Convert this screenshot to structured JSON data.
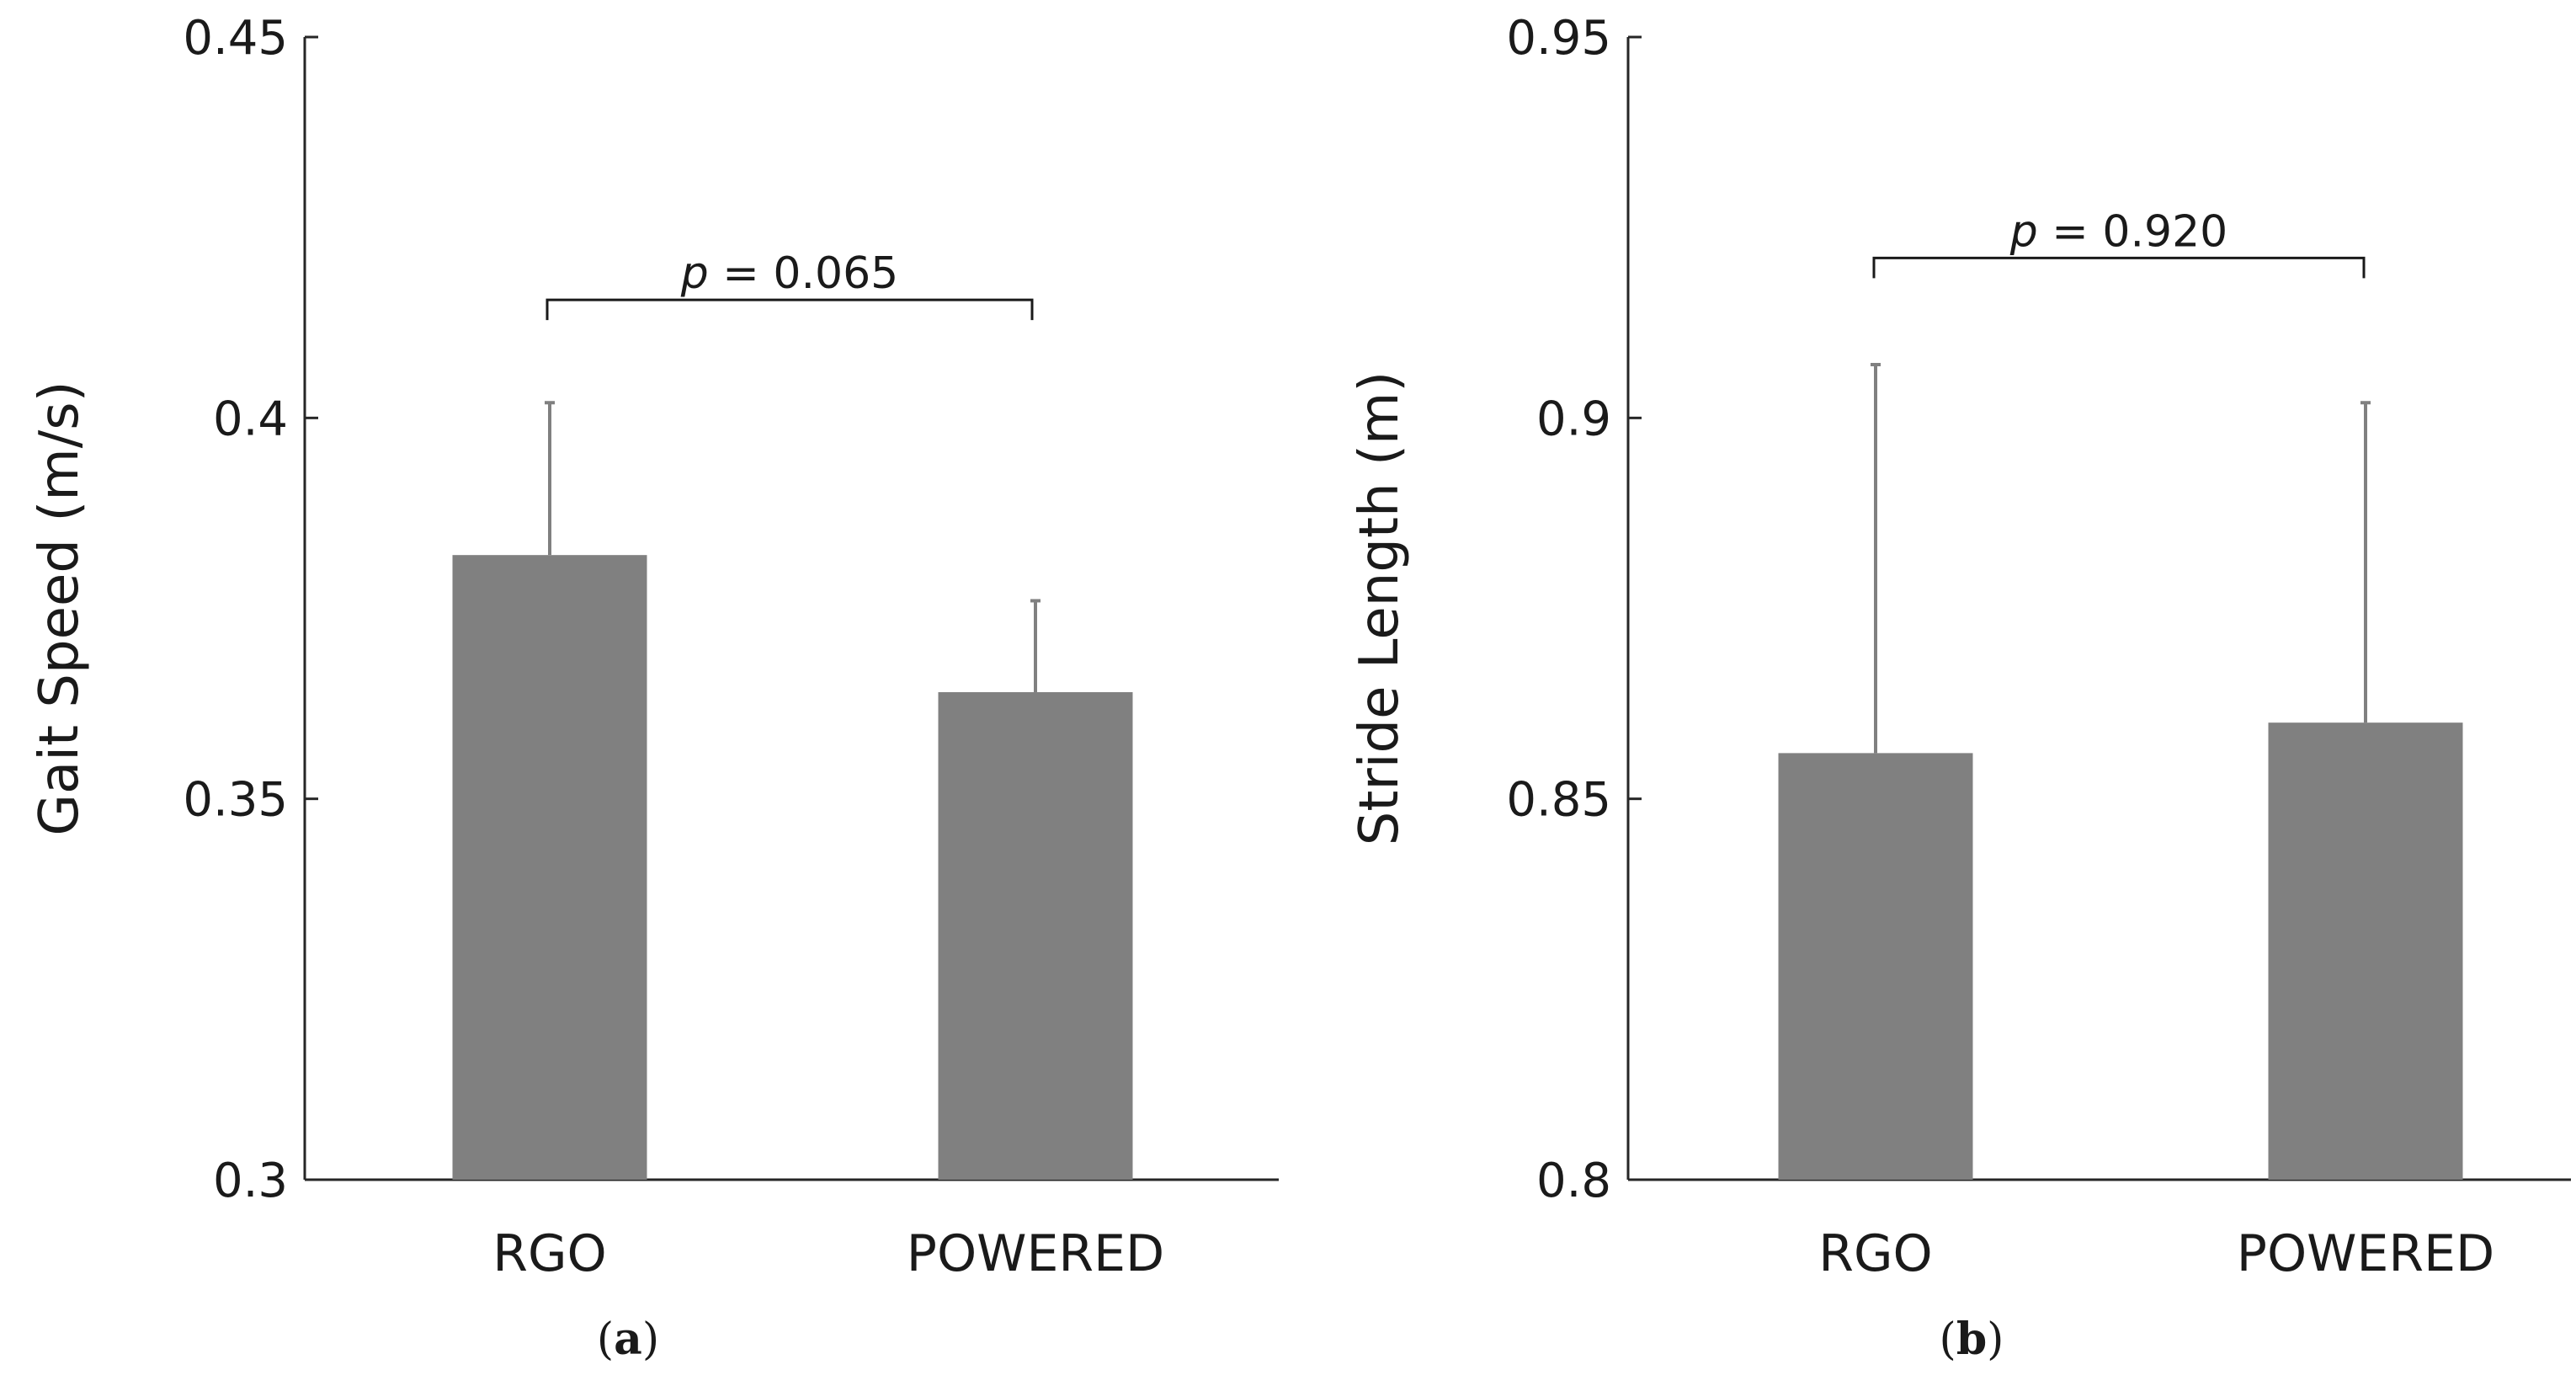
{
  "chart_data": [
    {
      "type": "bar",
      "panel": "a",
      "caption_letter": "a",
      "ylabel": "Gait Speed (m/s)",
      "xlabel": "",
      "ylim": [
        0.3,
        0.45
      ],
      "yticks": [
        0.3,
        0.35,
        0.4,
        0.45
      ],
      "ytick_labels": [
        "0.3",
        "0.35",
        "0.4",
        "0.45"
      ],
      "categories": [
        "RGO",
        "POWERED"
      ],
      "values": [
        0.382,
        0.364
      ],
      "error_upper": [
        0.402,
        0.376
      ],
      "bar_color": "#808080",
      "error_color": "#808080",
      "significance": {
        "p_italic": "p",
        "p_rest": " = 0.065",
        "level": 0.4155
      }
    },
    {
      "type": "bar",
      "panel": "b",
      "caption_letter": "b",
      "ylabel": "Stride Length (m)",
      "xlabel": "",
      "ylim": [
        0.8,
        0.95
      ],
      "yticks": [
        0.8,
        0.85,
        0.9,
        0.95
      ],
      "ytick_labels": [
        "0.8",
        "0.85",
        "0.9",
        "0.95"
      ],
      "categories": [
        "RGO",
        "POWERED"
      ],
      "values": [
        0.856,
        0.86
      ],
      "error_upper": [
        0.907,
        0.902
      ],
      "bar_color": "#808080",
      "error_color": "#808080",
      "significance": {
        "p_italic": "p",
        "p_rest": " = 0.920",
        "level": 0.921
      }
    }
  ]
}
